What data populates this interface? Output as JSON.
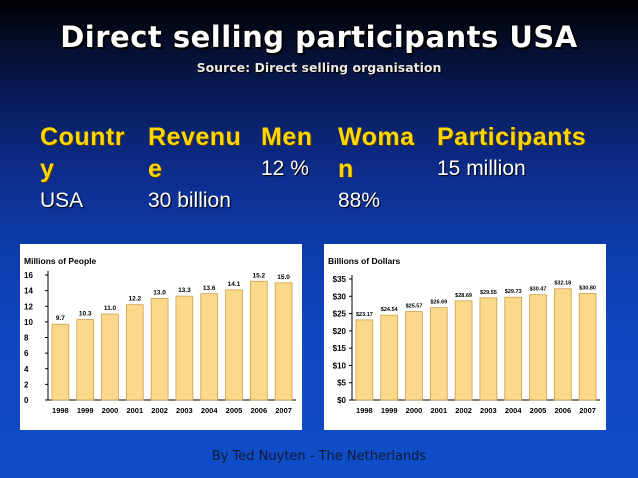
{
  "slide": {
    "title": "Direct selling participants USA",
    "subtitle": "Source: Direct selling organisation",
    "footer": "By Ted Nuyten - The Netherlands"
  },
  "table": {
    "headers": [
      "Countr\ny",
      "Revenu\ne",
      "Men",
      "Woma\nn",
      "Participants"
    ],
    "row": [
      "USA",
      "30 billion",
      "12 %",
      "88%",
      "15 million"
    ]
  },
  "colors": {
    "bar_fill": "#fcd98a",
    "bar_stroke": "#c9a04a",
    "header_text": "#ffd700"
  },
  "chart_data": [
    {
      "type": "bar",
      "title": "Millions of People",
      "categories": [
        "1998",
        "1999",
        "2000",
        "2001",
        "2002",
        "2003",
        "2004",
        "2005",
        "2006",
        "2007"
      ],
      "values": [
        9.7,
        10.3,
        11.0,
        12.2,
        13.0,
        13.3,
        13.6,
        14.1,
        15.2,
        15.0
      ],
      "data_labels": [
        "9.7",
        "10.3",
        "11.0",
        "12.2",
        "13.0",
        "13.3",
        "13.6",
        "14.1",
        "15.2",
        "15.0"
      ],
      "ylim": [
        0,
        16
      ],
      "yticks": [
        0,
        2,
        4,
        6,
        8,
        10,
        12,
        14,
        16
      ],
      "ytick_labels": [
        "0",
        "2",
        "4",
        "6",
        "8",
        "10",
        "12",
        "14",
        "16"
      ],
      "grid": false
    },
    {
      "type": "bar",
      "title": "Billions of Dollars",
      "categories": [
        "1998",
        "1999",
        "2000",
        "2001",
        "2002",
        "2003",
        "2004",
        "2005",
        "2006",
        "2007"
      ],
      "values": [
        23.17,
        24.54,
        25.57,
        26.69,
        28.69,
        29.55,
        29.73,
        30.47,
        32.18,
        30.8
      ],
      "data_labels": [
        "$23.17",
        "$24.54",
        "$25.57",
        "$26.69",
        "$28.69",
        "$29.55",
        "$29.73",
        "$30.47",
        "$32.18",
        "$30.80"
      ],
      "ylim": [
        0,
        35
      ],
      "yticks": [
        0,
        5,
        10,
        15,
        20,
        25,
        30,
        35
      ],
      "ytick_labels": [
        "$0",
        "$5",
        "$10",
        "$15",
        "$20",
        "$25",
        "$30",
        "$35"
      ],
      "grid": false
    }
  ]
}
